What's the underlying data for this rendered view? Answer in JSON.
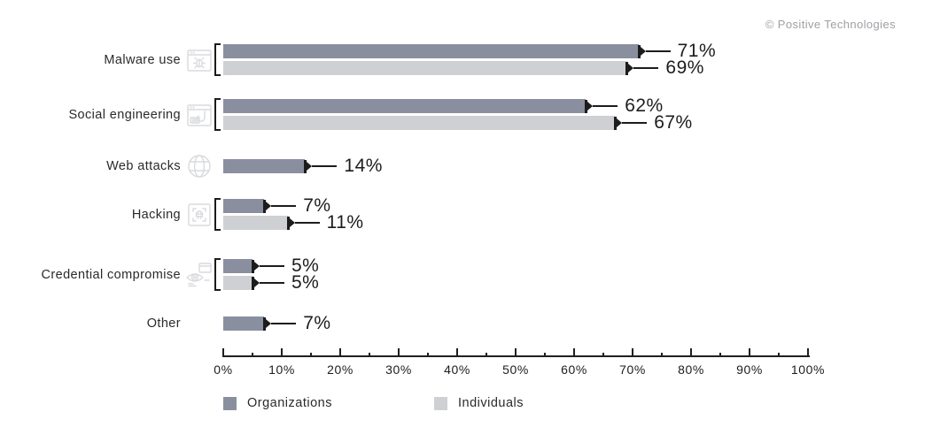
{
  "copyright": "© Positive Technologies",
  "chart_data": {
    "type": "bar",
    "orientation": "horizontal",
    "title": "",
    "xlabel": "",
    "ylabel": "",
    "xlim": [
      0,
      100
    ],
    "grid": false,
    "legend_position": "bottom",
    "value_suffix": "%",
    "x_ticks": [
      "0%",
      "10%",
      "20%",
      "30%",
      "40%",
      "50%",
      "60%",
      "70%",
      "80%",
      "90%",
      "100%"
    ],
    "categories": [
      "Malware use",
      "Social engineering",
      "Web attacks",
      "Hacking",
      "Credential compromise",
      "Other"
    ],
    "category_icons": [
      "malware-window-bug-icon",
      "phishing-window-hook-icon",
      "globe-icon",
      "hacking-skull-icon",
      "credential-eye-icon",
      null
    ],
    "series": [
      {
        "name": "Organizations",
        "color": "#8a8fa0",
        "values": [
          71,
          62,
          14,
          7,
          5,
          7
        ]
      },
      {
        "name": "Individuals",
        "color": "#cfd0d3",
        "values": [
          69,
          67,
          null,
          11,
          5,
          null
        ]
      }
    ],
    "value_labels": {
      "Organizations": [
        "71%",
        "62%",
        "14%",
        "7%",
        "5%",
        "7%"
      ],
      "Individuals": [
        "69%",
        "67%",
        null,
        "11%",
        "5%",
        null
      ]
    }
  }
}
